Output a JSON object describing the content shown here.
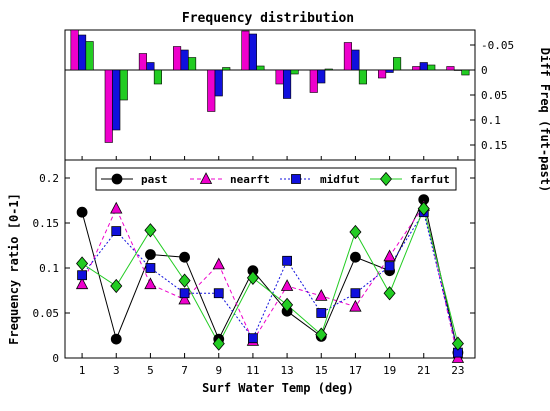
{
  "chart_data": [
    {
      "type": "bar",
      "title": "Frequency distribution",
      "xlabel": "",
      "ylabel": "Diff Freq (fut-past)",
      "ylim": [
        0.18,
        -0.08
      ],
      "y_inverted": true,
      "y_axis_side": "right",
      "y_ticks": [
        -0.05,
        0,
        0.05,
        0.1,
        0.15
      ],
      "y_tick_labels": [
        "-0.05",
        "0",
        "0.05",
        "0.1",
        "0.15"
      ],
      "categories": [
        1,
        3,
        5,
        7,
        9,
        11,
        13,
        15,
        17,
        19,
        21,
        23
      ],
      "series": [
        {
          "name": "nearft",
          "color": "#ee00cc",
          "values": [
            -0.08,
            0.145,
            -0.033,
            -0.047,
            0.083,
            -0.078,
            0.028,
            0.045,
            -0.055,
            0.016,
            -0.007,
            -0.007
          ]
        },
        {
          "name": "midfut",
          "color": "#1010dd",
          "values": [
            -0.07,
            0.12,
            -0.015,
            -0.04,
            0.052,
            -0.072,
            0.057,
            0.026,
            -0.04,
            0.005,
            -0.015,
            0.0
          ]
        },
        {
          "name": "farfut",
          "color": "#22cc22",
          "values": [
            -0.057,
            0.06,
            0.028,
            -0.025,
            -0.005,
            -0.008,
            0.008,
            -0.002,
            0.028,
            -0.025,
            -0.01,
            0.01
          ]
        }
      ]
    },
    {
      "type": "line",
      "title": "",
      "xlabel": "Surf Water Temp (deg)",
      "ylabel": "Frequency ratio [0-1]",
      "xlim": [
        0,
        24
      ],
      "ylim": [
        0,
        0.22
      ],
      "x_ticks": [
        1,
        3,
        5,
        7,
        9,
        11,
        13,
        15,
        17,
        19,
        21,
        23
      ],
      "y_ticks": [
        0,
        0.05,
        0.1,
        0.15,
        0.2
      ],
      "y_tick_labels": [
        "0",
        "0.05",
        "0.1",
        "0.15",
        "0.2"
      ],
      "legend_position": "top",
      "x": [
        1,
        3,
        5,
        7,
        9,
        11,
        13,
        15,
        17,
        19,
        21,
        23
      ],
      "series": [
        {
          "name": "past",
          "color": "#000000",
          "marker": "circle",
          "line_style": "solid",
          "values": [
            0.162,
            0.021,
            0.115,
            0.112,
            0.021,
            0.097,
            0.052,
            0.024,
            0.112,
            0.097,
            0.176,
            0.006
          ]
        },
        {
          "name": "nearft",
          "color": "#ee00cc",
          "marker": "triangle",
          "line_style": "dashed",
          "values": [
            0.082,
            0.166,
            0.082,
            0.065,
            0.104,
            0.019,
            0.08,
            0.069,
            0.057,
            0.113,
            0.169,
            0.0
          ]
        },
        {
          "name": "midfut",
          "color": "#1010dd",
          "marker": "square",
          "line_style": "dotted",
          "values": [
            0.092,
            0.141,
            0.1,
            0.072,
            0.072,
            0.022,
            0.108,
            0.05,
            0.072,
            0.102,
            0.162,
            0.006
          ]
        },
        {
          "name": "farfut",
          "color": "#22cc22",
          "marker": "diamond",
          "line_style": "solid",
          "values": [
            0.105,
            0.08,
            0.142,
            0.086,
            0.016,
            0.089,
            0.059,
            0.026,
            0.14,
            0.072,
            0.166,
            0.016
          ]
        }
      ]
    }
  ]
}
